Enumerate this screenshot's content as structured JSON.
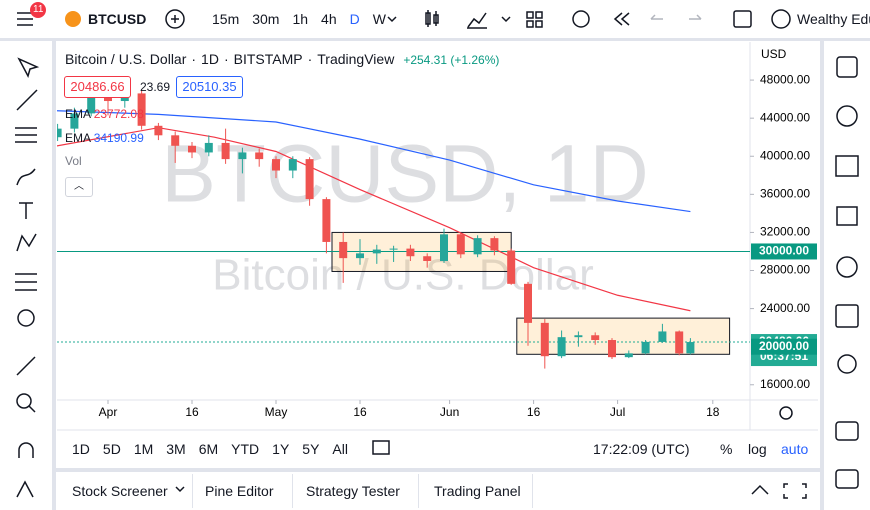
{
  "top_bar": {
    "badge": "11",
    "symbol": "BTCUSD",
    "intervals": [
      "15m",
      "30m",
      "1h",
      "4h",
      "D",
      "W"
    ],
    "account": "Wealthy Edu"
  },
  "legend": {
    "name": "Bitcoin / U.S. Dollar",
    "interval": "1D",
    "exchange": "BITSTAMP",
    "source": "TradingView",
    "change": "+254.31 (+1.26%)",
    "bid": "20486.66",
    "spread": "23.69",
    "ask": "20510.35",
    "indicators": [
      {
        "label": "EMA",
        "value": "23772.08",
        "color": "#f23645"
      },
      {
        "label": "EMA",
        "value": "34190.99",
        "color": "#2962ff"
      }
    ],
    "volume": "Vol"
  },
  "watermark": {
    "symbol": "BTCUSD, 1D",
    "description": "Bitcoin / U.S. Dollar"
  },
  "currency": "USD",
  "chart_data": {
    "type": "candlestick",
    "x": [
      "Mar 23",
      "Mar 26",
      "Mar 29",
      "Apr 1",
      "Apr 4",
      "Apr 7",
      "Apr 10",
      "Apr 13",
      "Apr 16",
      "Apr 19",
      "Apr 22",
      "Apr 25",
      "Apr 28",
      "May 1",
      "May 4",
      "May 7",
      "May 10",
      "May 13",
      "May 16",
      "May 19",
      "May 22",
      "May 25",
      "May 28",
      "May 31",
      "Jun 3",
      "Jun 6",
      "Jun 9",
      "Jun 12",
      "Jun 15",
      "Jun 18",
      "Jun 21",
      "Jun 24",
      "Jun 27",
      "Jun 30",
      "Jul 3",
      "Jul 6",
      "Jul 9",
      "Jul 12",
      "Jul 14"
    ],
    "open": [
      42000,
      42900,
      44500,
      47100,
      45800,
      46600,
      43200,
      42200,
      41100,
      40400,
      41400,
      39700,
      40400,
      39700,
      38500,
      39700,
      35500,
      31000,
      29300,
      29800,
      30200,
      30300,
      29500,
      29000,
      31800,
      29700,
      31400,
      30100,
      26600,
      22500,
      19000,
      21000,
      21200,
      20700,
      18900,
      19300,
      20500,
      21600,
      19300
    ],
    "high": [
      43400,
      45100,
      48100,
      47600,
      47400,
      47000,
      43500,
      42600,
      41500,
      42200,
      42900,
      40900,
      40800,
      40000,
      40000,
      39900,
      35700,
      32000,
      31300,
      30700,
      30600,
      30700,
      29800,
      32400,
      31900,
      31700,
      31600,
      30300,
      26800,
      22900,
      21700,
      21600,
      21500,
      20900,
      19600,
      20700,
      22400,
      21700,
      20900
    ],
    "low": [
      41600,
      42500,
      44200,
      44300,
      45100,
      42800,
      41700,
      39300,
      39800,
      40000,
      39200,
      38200,
      38900,
      37700,
      37700,
      34800,
      29800,
      26700,
      28600,
      28700,
      28900,
      29000,
      28300,
      28800,
      29300,
      29400,
      29600,
      26500,
      20100,
      17700,
      18800,
      20000,
      20200,
      18700,
      18800,
      19200,
      20400,
      19100,
      19200
    ],
    "close": [
      42900,
      44500,
      47100,
      45800,
      46600,
      43200,
      42200,
      41100,
      40400,
      41400,
      39700,
      40400,
      39700,
      38500,
      39700,
      35500,
      31000,
      29300,
      29800,
      30200,
      30300,
      29500,
      29000,
      31800,
      29700,
      31400,
      30100,
      26600,
      22500,
      19000,
      21000,
      21200,
      20700,
      18900,
      19300,
      20500,
      21600,
      19300,
      20486.66
    ],
    "up_color": "#26a69a",
    "down_color": "#ef5350",
    "overlays": [
      {
        "color": "#f23645",
        "x": [
          "Mar 22",
          "Apr 10",
          "Apr 20",
          "May 1",
          "May 16",
          "Jun 1",
          "Jun 16",
          "Jul 1",
          "Jul 14"
        ],
        "values": [
          41000,
          43000,
          42000,
          40500,
          36500,
          32500,
          28300,
          25400,
          23772.08
        ]
      },
      {
        "color": "#2962ff",
        "x": [
          "Mar 22",
          "Apr 10",
          "May 1",
          "May 16",
          "Jun 1",
          "Jun 16",
          "Jul 1",
          "Jul 14"
        ],
        "values": [
          44800,
          44400,
          43600,
          41800,
          39600,
          37000,
          35300,
          34190.99
        ]
      }
    ],
    "rectangles": [
      {
        "x_start": "May 11",
        "x_end": "Jun 12",
        "top": 32000,
        "bottom": 27900
      },
      {
        "x_start": "Jun 13",
        "x_end": "Jul 21",
        "top": 23000,
        "bottom": 19200
      }
    ],
    "hlines": [
      {
        "value": 30000,
        "color": "#089981",
        "dashed": false
      },
      {
        "value": 20486.66,
        "color": "#22ab94",
        "dashed": true
      }
    ],
    "price_labels": [
      {
        "value": 30000,
        "label": "30000.00",
        "color": "#089981"
      },
      {
        "value": 20486.66,
        "label": "20486.66",
        "sublabel": "06:37:51",
        "color": "#22ab94"
      },
      {
        "value": 20000,
        "label": "20000.00",
        "color": "#089981"
      }
    ],
    "ylim": [
      14400,
      52000
    ],
    "yticks": [
      {
        "value": 16000,
        "label": "16000.00"
      },
      {
        "value": 24000,
        "label": "24000.00"
      },
      {
        "value": 28000,
        "label": "28000.00"
      },
      {
        "value": 32000,
        "label": "32000.00"
      },
      {
        "value": 36000,
        "label": "36000.00"
      },
      {
        "value": 40000,
        "label": "40000.00"
      },
      {
        "value": 44000,
        "label": "44000.00"
      },
      {
        "value": 48000,
        "label": "48000.00"
      }
    ],
    "xticks": [
      {
        "value": "Apr 1",
        "label": "Apr"
      },
      {
        "value": "Apr 16",
        "label": "16"
      },
      {
        "value": "May 1",
        "label": "May"
      },
      {
        "value": "May 16",
        "label": "16"
      },
      {
        "value": "Jun 1",
        "label": "Jun"
      },
      {
        "value": "Jun 16",
        "label": "16"
      },
      {
        "value": "Jul 1",
        "label": "Jul"
      },
      {
        "value": "Jul 18",
        "label": "18"
      }
    ]
  },
  "range_bar": {
    "ranges": [
      "1D",
      "5D",
      "1M",
      "3M",
      "6M",
      "YTD",
      "1Y",
      "5Y",
      "All"
    ],
    "time": "17:22:09 (UTC)",
    "scale_options": [
      "%",
      "log",
      "auto"
    ]
  },
  "bottom_tabs": [
    "Stock Screener",
    "Pine Editor",
    "Strategy Tester",
    "Trading Panel"
  ]
}
